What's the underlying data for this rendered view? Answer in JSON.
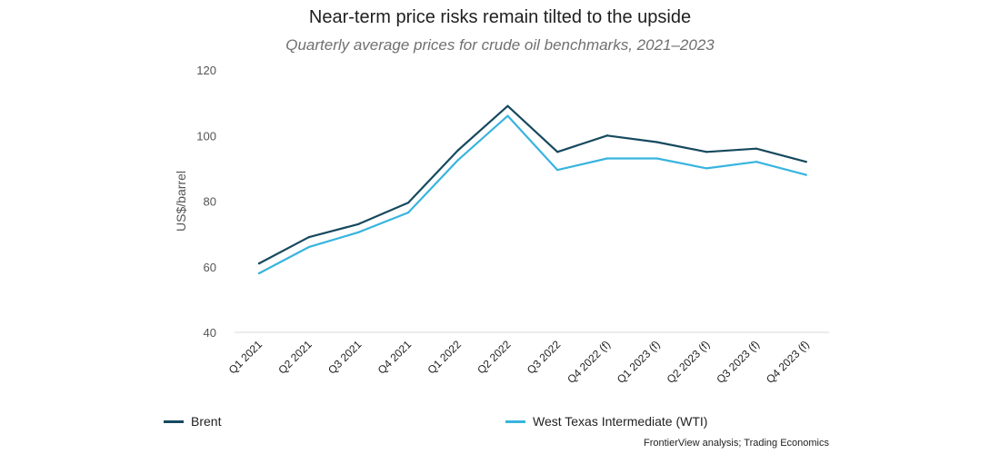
{
  "chart_data": {
    "type": "line",
    "title": "Near-term price risks remain tilted to the upside",
    "subtitle": "Quarterly average prices for crude oil benchmarks, 2021–2023",
    "xlabel": "",
    "ylabel": "US$/barrel",
    "ylim": [
      40,
      120
    ],
    "yticks": [
      40,
      60,
      80,
      100,
      120
    ],
    "grid": false,
    "legend_position": "bottom",
    "categories": [
      "Q1 2021",
      "Q2 2021",
      "Q3 2021",
      "Q4 2021",
      "Q1 2022",
      "Q2 2022",
      "Q3 2022",
      "Q4 2022 (f)",
      "Q1 2023 (f)",
      "Q2 2023 (f)",
      "Q3 2023 (f)",
      "Q4 2023 (f)"
    ],
    "series": [
      {
        "name": "Brent",
        "color": "#16495e",
        "values": [
          61,
          69,
          73,
          79.5,
          95.5,
          109,
          95,
          100,
          98,
          95,
          96,
          92
        ]
      },
      {
        "name": "West Texas Intermediate (WTI)",
        "color": "#38b4de",
        "values": [
          58,
          66,
          70.5,
          76.5,
          92.5,
          106,
          89.5,
          93,
          93,
          90,
          92,
          88
        ]
      }
    ],
    "source": "FrontierView analysis; Trading Economics"
  }
}
